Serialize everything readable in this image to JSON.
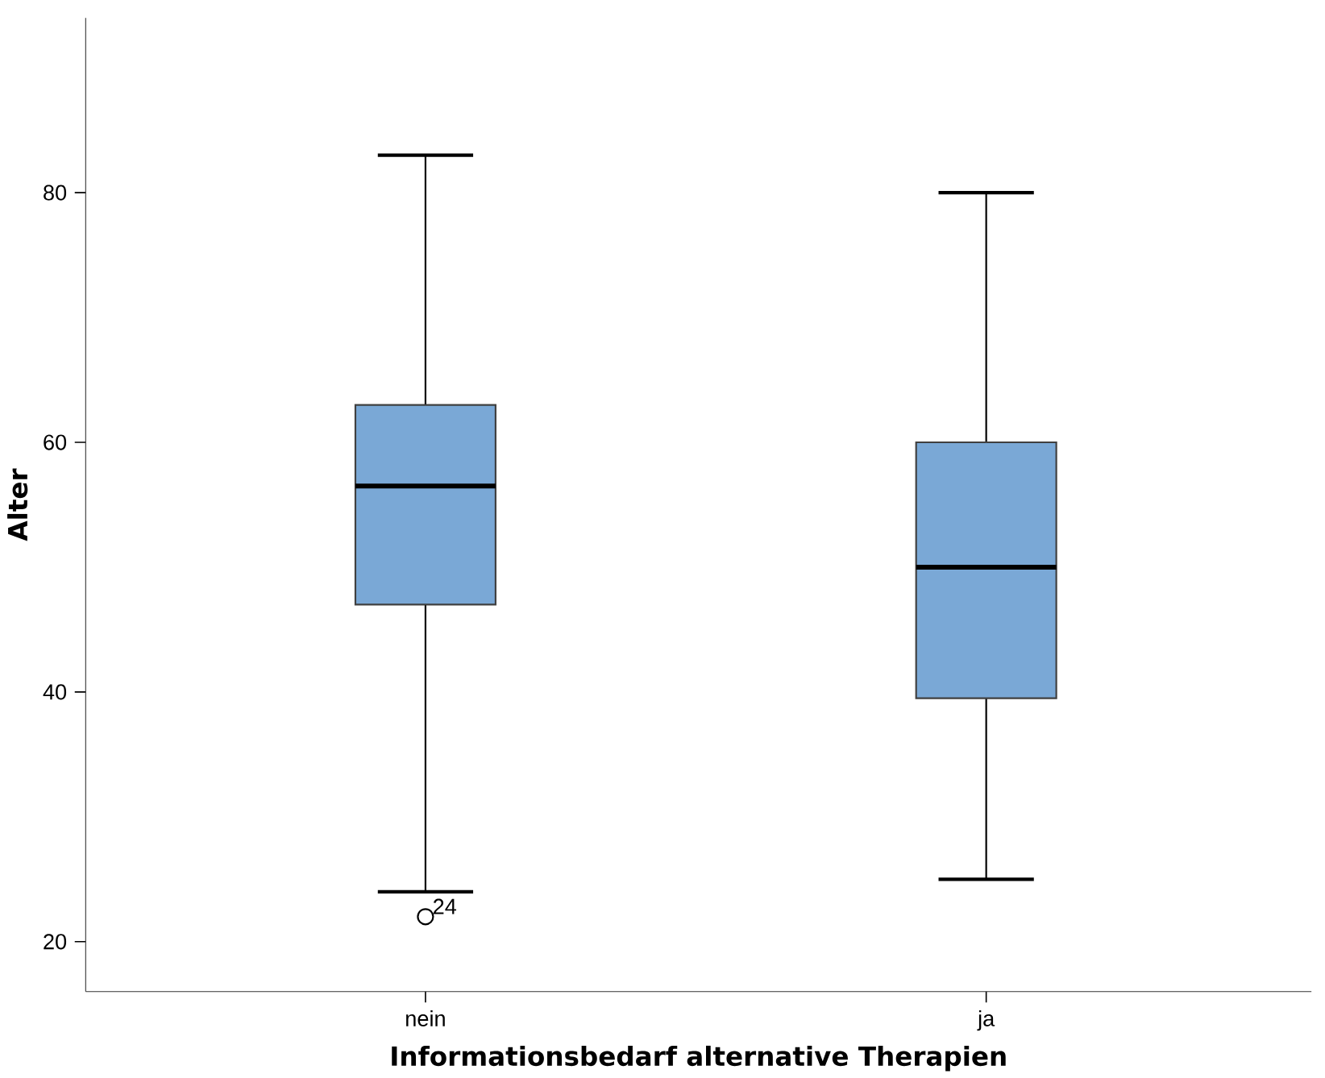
{
  "chart_data": {
    "type": "box",
    "xlabel": "Informationsbedarf alternative Therapien",
    "ylabel": "Alter",
    "categories": [
      "nein",
      "ja"
    ],
    "color": "#7aa8d6",
    "boxes": [
      {
        "low": 24,
        "q1": 47,
        "median": 56.5,
        "q3": 63,
        "high": 83,
        "outliers": [
          22
        ]
      },
      {
        "low": 25,
        "q1": 39.5,
        "median": 50,
        "q3": 60,
        "high": 80
      }
    ],
    "ylim": [
      16,
      94
    ],
    "yticks": [
      20,
      40,
      60,
      80
    ],
    "annotations": [
      "24"
    ]
  }
}
